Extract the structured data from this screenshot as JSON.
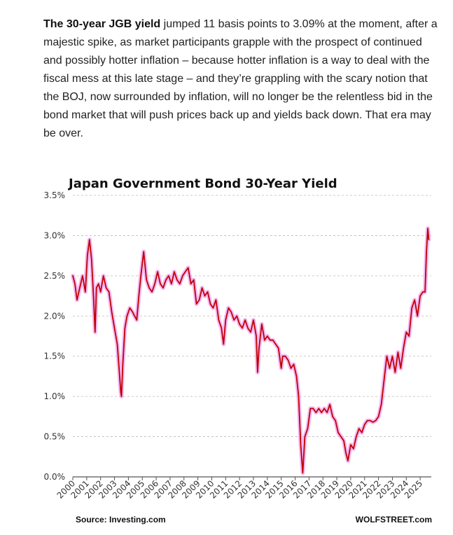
{
  "article": {
    "lead_bold": "The 30-year JGB yield",
    "body": " jumped 11 basis points to 3.09% at the moment, after a majestic spike, as market participants grapple with the prospect of continued and possibly hotter inflation – because hotter inflation is a way to deal with the fiscal mess at this late stage – and they’re grappling with the scary notion that the BOJ, now surrounded by inflation, will no longer be the relentless bid in the bond market that will push prices back up and yields back down. That era may be over."
  },
  "chart_data": {
    "type": "line",
    "title": "Japan Government Bond 30-Year Yield",
    "source": "Source: Investing.com",
    "credit": "WOLFSTREET.com",
    "ylim": [
      0,
      3.5
    ],
    "yticks": [
      "0.0%",
      "0.5%",
      "1.0%",
      "1.5%",
      "2.0%",
      "2.5%",
      "3.0%",
      "3.5%"
    ],
    "xlim": [
      2000,
      2025.8
    ],
    "xticks": [
      "2000",
      "2001",
      "2002",
      "2003",
      "2004",
      "2005",
      "2006",
      "2007",
      "2008",
      "2009",
      "2010",
      "2011",
      "2012",
      "2013",
      "2014",
      "2015",
      "2016",
      "2017",
      "2018",
      "2019",
      "2020",
      "2021",
      "2022",
      "2023",
      "2024",
      "2025"
    ],
    "grid": "horizontal dashed",
    "colors": {
      "line": "#c00000",
      "halo": "#f0a0f0"
    },
    "series": [
      {
        "x": [
          2000.0,
          2000.15,
          2000.3,
          2000.5,
          2000.7,
          2000.9,
          2001.05,
          2001.2,
          2001.35,
          2001.5,
          2001.6,
          2001.7,
          2001.85,
          2002.0,
          2002.2,
          2002.4,
          2002.6,
          2002.8,
          2003.0,
          2003.2,
          2003.35,
          2003.45,
          2003.5,
          2003.6,
          2003.75,
          2003.9,
          2004.1,
          2004.3,
          2004.45,
          2004.6,
          2004.75,
          2004.9,
          2005.1,
          2005.3,
          2005.5,
          2005.7,
          2005.9,
          2006.1,
          2006.3,
          2006.5,
          2006.7,
          2006.9,
          2007.1,
          2007.3,
          2007.5,
          2007.7,
          2007.9,
          2008.1,
          2008.3,
          2008.5,
          2008.7,
          2008.9,
          2009.1,
          2009.3,
          2009.5,
          2009.7,
          2009.9,
          2010.1,
          2010.3,
          2010.5,
          2010.7,
          2010.85,
          2011.0,
          2011.2,
          2011.4,
          2011.6,
          2011.8,
          2012.0,
          2012.2,
          2012.4,
          2012.6,
          2012.8,
          2013.0,
          2013.2,
          2013.3,
          2013.4,
          2013.6,
          2013.8,
          2014.0,
          2014.2,
          2014.4,
          2014.6,
          2014.8,
          2015.0,
          2015.1,
          2015.3,
          2015.5,
          2015.7,
          2015.9,
          2016.1,
          2016.25,
          2016.4,
          2016.55,
          2016.7,
          2016.9,
          2017.1,
          2017.3,
          2017.5,
          2017.7,
          2017.9,
          2018.1,
          2018.3,
          2018.5,
          2018.7,
          2018.9,
          2019.1,
          2019.3,
          2019.5,
          2019.65,
          2019.8,
          2020.0,
          2020.2,
          2020.4,
          2020.6,
          2020.8,
          2021.0,
          2021.2,
          2021.4,
          2021.6,
          2021.8,
          2022.0,
          2022.2,
          2022.4,
          2022.6,
          2022.8,
          2023.0,
          2023.2,
          2023.4,
          2023.6,
          2023.8,
          2024.0,
          2024.2,
          2024.4,
          2024.6,
          2024.8,
          2025.0,
          2025.2,
          2025.35,
          2025.45,
          2025.55,
          2025.62
        ],
        "y": [
          2.5,
          2.4,
          2.2,
          2.35,
          2.5,
          2.3,
          2.75,
          2.95,
          2.7,
          2.2,
          1.8,
          2.35,
          2.4,
          2.3,
          2.5,
          2.35,
          2.3,
          2.05,
          1.85,
          1.65,
          1.3,
          1.05,
          1.0,
          1.4,
          1.85,
          2.0,
          2.1,
          2.05,
          2.0,
          1.95,
          2.25,
          2.5,
          2.8,
          2.45,
          2.35,
          2.3,
          2.4,
          2.55,
          2.4,
          2.35,
          2.45,
          2.5,
          2.4,
          2.55,
          2.45,
          2.4,
          2.5,
          2.55,
          2.6,
          2.4,
          2.45,
          2.15,
          2.2,
          2.35,
          2.25,
          2.3,
          2.15,
          2.1,
          2.2,
          1.95,
          1.85,
          1.65,
          1.95,
          2.1,
          2.05,
          1.95,
          2.0,
          1.9,
          1.85,
          1.95,
          1.85,
          1.8,
          1.95,
          1.75,
          1.3,
          1.6,
          1.9,
          1.7,
          1.75,
          1.7,
          1.7,
          1.65,
          1.6,
          1.35,
          1.5,
          1.5,
          1.45,
          1.35,
          1.4,
          1.25,
          1.0,
          0.4,
          0.05,
          0.5,
          0.6,
          0.85,
          0.85,
          0.8,
          0.85,
          0.8,
          0.85,
          0.8,
          0.9,
          0.75,
          0.7,
          0.55,
          0.5,
          0.45,
          0.3,
          0.2,
          0.4,
          0.35,
          0.5,
          0.6,
          0.55,
          0.65,
          0.7,
          0.7,
          0.68,
          0.7,
          0.75,
          0.9,
          1.2,
          1.5,
          1.35,
          1.5,
          1.3,
          1.55,
          1.35,
          1.6,
          1.8,
          1.75,
          2.1,
          2.2,
          2.0,
          2.25,
          2.3,
          2.3,
          2.8,
          3.09,
          2.95
        ]
      }
    ]
  }
}
